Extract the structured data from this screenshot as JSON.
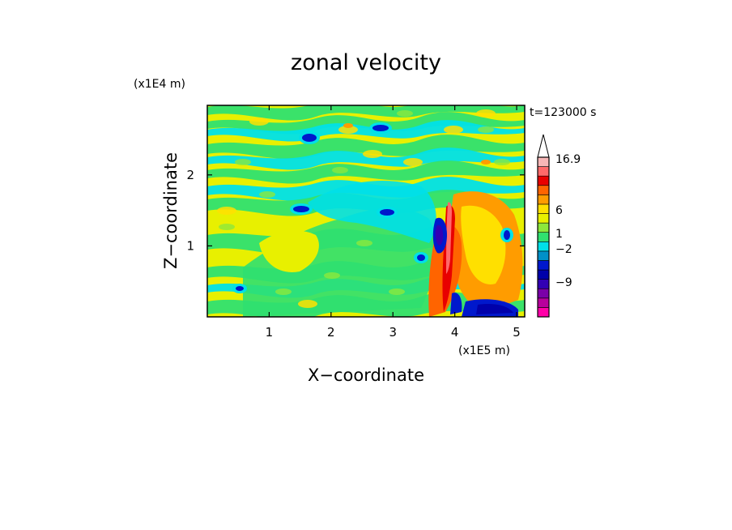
{
  "chart_data": {
    "type": "heatmap",
    "title": "zonal velocity",
    "xlabel": "X−coordinate",
    "ylabel": "Z−coordinate",
    "x_unit": "(x1E5 m)",
    "y_unit": "(x1E4 m)",
    "time_label": "t=123000 s",
    "xlim": [
      0,
      5.13
    ],
    "ylim": [
      0,
      2.98
    ],
    "x_ticks": [
      "1",
      "2",
      "3",
      "4",
      "5"
    ],
    "y_ticks": [
      "1",
      "2"
    ],
    "colorbar": {
      "labels": [
        "16.9",
        "6",
        "1",
        "−2",
        "−9"
      ],
      "levels": [
        {
          "color": "#ff00a8"
        },
        {
          "color": "#b8009c"
        },
        {
          "color": "#7a00a8"
        },
        {
          "color": "#3200b4"
        },
        {
          "color": "#0000aa"
        },
        {
          "color": "#0018cc"
        },
        {
          "color": "#0090c8"
        },
        {
          "color": "#00e0e8"
        },
        {
          "color": "#30e070"
        },
        {
          "color": "#8ce83c"
        },
        {
          "color": "#e8f000"
        },
        {
          "color": "#ffe000"
        },
        {
          "color": "#ff9c00"
        },
        {
          "color": "#ff6400"
        },
        {
          "color": "#e80000"
        },
        {
          "color": "#ff6a6a"
        },
        {
          "color": "#f7b7b7"
        }
      ]
    },
    "palette_note": "field values not printed; filled contours visible"
  }
}
